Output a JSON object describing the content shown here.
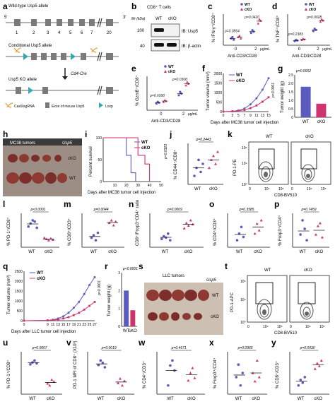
{
  "panels": {
    "a": "a",
    "b": "b",
    "c": "c",
    "d": "d",
    "e": "e",
    "f": "f",
    "g": "g",
    "h": "h",
    "i": "i",
    "j": "j",
    "k": "k",
    "l": "l",
    "m": "m",
    "n": "n",
    "o": "o",
    "p": "p",
    "q": "q",
    "r": "r",
    "s": "s",
    "t": "t",
    "u": "u",
    "v": "v",
    "w": "w",
    "x": "x",
    "y": "y"
  },
  "schematic": {
    "wt_allele": "Wild-type Usp5 allele",
    "five_prime": "5'",
    "three_prime": "3'",
    "exon_numbers": [
      "1",
      "2",
      "3",
      "4",
      "5",
      "6",
      "7",
      "20"
    ],
    "conditional_allele": "Conditional Usp5 allele",
    "ko_allele": "Usp5 KO allele",
    "cd4cre": "Cd4-Cre",
    "legend_sgrna": "Cas9/sgRNA",
    "legend_exon": "Exon of mouse Usp5",
    "legend_loxp": "Loxp"
  },
  "blot": {
    "title": "CD8⁺ T cells",
    "mr": "Mr (kDa)",
    "lanes": [
      "WT",
      "cKO"
    ],
    "markers": [
      "100",
      "40"
    ],
    "ib1": "IB: Usp5",
    "ib2": "IB: β-actin"
  },
  "common": {
    "wt": "WT",
    "cko": "cKO",
    "anti_cd3": "Anti-CD3/CD28",
    "dose_unit": "μg/mL",
    "dose0": "0",
    "dose2": "2"
  },
  "legend_colors": {
    "wt": "#5b5bbf",
    "cko": "#d0346f"
  },
  "chart_data": [
    {
      "panel": "c",
      "type": "scatter",
      "ylabel": "% IFN-γ⁺/CD8⁺",
      "xlabel": "Anti-CD3/CD28",
      "categories": [
        "0",
        "2"
      ],
      "series": [
        {
          "name": "WT",
          "values": [
            [
              1.0,
              1.2,
              0.8
            ],
            [
              1.8,
              2.2,
              2.0
            ]
          ]
        },
        {
          "name": "cKO",
          "values": [
            [
              1.2,
              1.4,
              1.0
            ],
            [
              3.2,
              3.8,
              3.6
            ]
          ]
        }
      ],
      "pvalues": [
        "p=0.3864",
        "p=0.0420"
      ]
    },
    {
      "panel": "d",
      "type": "scatter",
      "ylabel": "% TNF⁺/CD8⁺",
      "xlabel": "Anti-CD3/CD28",
      "categories": [
        "0",
        "2"
      ],
      "series": [
        {
          "name": "WT",
          "values": [
            [
              0.7,
              0.9,
              0.8
            ],
            [
              2.4,
              2.8,
              2.6
            ]
          ]
        },
        {
          "name": "cKO",
          "values": [
            [
              0.9,
              1.1,
              1.0
            ],
            [
              4.0,
              4.4,
              4.2
            ]
          ]
        }
      ],
      "pvalues": [
        "p=0.2383",
        "p=0.0028"
      ]
    },
    {
      "panel": "e",
      "type": "scatter",
      "ylabel": "% GzmB⁺/CD8⁺",
      "xlabel": "Anti-CD3/CD28",
      "categories": [
        "0",
        "2"
      ],
      "series": [
        {
          "name": "WT",
          "values": [
            [
              0.8,
              1.0,
              0.9
            ],
            [
              1.8,
              2.2,
              2.0
            ]
          ]
        },
        {
          "name": "cKO",
          "values": [
            [
              1.0,
              1.2,
              1.1
            ],
            [
              3.0,
              3.4,
              3.2
            ]
          ]
        }
      ],
      "pvalues": [
        "p=0.6990",
        "p=0.0368"
      ]
    },
    {
      "panel": "f",
      "type": "line",
      "ylabel": "Tumor volume (mm³)",
      "xlabel": "Days after MC38 tumor cell injection",
      "x": [
        0,
        3,
        5,
        7,
        9,
        11,
        13,
        15
      ],
      "ylim": [
        0,
        2000
      ],
      "yticks": [
        "0",
        "500",
        "1000",
        "1500",
        "2000"
      ],
      "series": [
        {
          "name": "WT",
          "values": [
            0,
            20,
            60,
            160,
            380,
            700,
            1150,
            1750
          ]
        },
        {
          "name": "cKO",
          "values": [
            0,
            15,
            40,
            90,
            180,
            320,
            520,
            750
          ]
        }
      ],
      "pvalues": [
        "p=0.0001"
      ]
    },
    {
      "panel": "g",
      "type": "bar",
      "ylabel": "Tumor weight (g)",
      "categories": [
        "WT",
        "cKO"
      ],
      "ylim": [
        0,
        2.5
      ],
      "yticks": [
        "0",
        "0.5",
        "1.0",
        "1.5",
        "2.0",
        "2.5"
      ],
      "values": [
        1.8,
        0.8
      ],
      "pvalues": [
        "p=0.0002"
      ]
    },
    {
      "panel": "i",
      "type": "line",
      "ylabel": "Percent survival",
      "xlabel": "Days after MC38 tumor cell injection",
      "ylim": [
        0,
        100
      ],
      "yticks": [
        "0",
        "50",
        "100"
      ],
      "xticks": [
        "10",
        "20",
        "30",
        "40",
        "50"
      ],
      "series": [
        {
          "name": "WT",
          "values": [
            [
              0,
              100
            ],
            [
              18,
              100
            ],
            [
              20,
              60
            ],
            [
              24,
              20
            ],
            [
              28,
              0
            ]
          ]
        },
        {
          "name": "cKO",
          "values": [
            [
              0,
              100
            ],
            [
              26,
              100
            ],
            [
              30,
              60
            ],
            [
              36,
              40
            ],
            [
              40,
              0
            ]
          ]
        }
      ],
      "pvalues": [
        "p=0.0323"
      ]
    },
    {
      "panel": "j",
      "type": "scatter",
      "ylabel": "% CD44⁺/CD8⁺",
      "categories": [
        "WT",
        "cKO"
      ],
      "values": [
        [
          88,
          90,
          92,
          89,
          91
        ],
        [
          90,
          92,
          93,
          91,
          94
        ]
      ],
      "pvalues": [
        "p=0.2443"
      ]
    },
    {
      "panel": "l",
      "type": "scatter",
      "ylabel": "% PD-1⁺/CD8⁺",
      "categories": [
        "WT",
        "cKO"
      ],
      "values": [
        [
          40,
          45,
          50,
          48,
          38
        ],
        [
          22,
          20,
          18,
          21,
          19
        ]
      ],
      "pvalues": [
        "p<0.0001"
      ]
    },
    {
      "panel": "m",
      "type": "scatter",
      "ylabel": "% CD8⁺/CD3⁺",
      "categories": [
        "WT",
        "cKO"
      ],
      "values": [
        [
          28,
          30,
          26,
          32
        ],
        [
          40,
          42,
          38,
          41
        ]
      ],
      "pvalues": [
        "p=0.0044"
      ]
    },
    {
      "panel": "n",
      "type": "scatter",
      "ylabel": "CD8⁺/Foxp3⁺CD4⁺ ratio",
      "categories": [
        "WT",
        "cKO"
      ],
      "values": [
        [
          8,
          10,
          9,
          12,
          7
        ],
        [
          16,
          20,
          18,
          22,
          19
        ]
      ],
      "pvalues": [
        "p=0.0069"
      ]
    },
    {
      "panel": "o",
      "type": "scatter",
      "ylabel": "% CD4⁺/CD3⁺",
      "categories": [
        "WT",
        "cKO"
      ],
      "values": [
        [
          20,
          22,
          24,
          21
        ],
        [
          22,
          25,
          23,
          26
        ]
      ],
      "pvalues": [
        "p=0.3585"
      ]
    },
    {
      "panel": "p",
      "type": "scatter",
      "ylabel": "% Foxp3⁺/CD4⁺",
      "categories": [
        "WT",
        "cKO"
      ],
      "values": [
        [
          30,
          35,
          32,
          28
        ],
        [
          30,
          33,
          34,
          29
        ]
      ],
      "pvalues": [
        "p=0.7459"
      ]
    },
    {
      "panel": "q",
      "type": "line",
      "ylabel": "Tumor volume (mm³)",
      "xlabel": "Days after LLC tumor cell injection",
      "x": [
        0,
        9,
        11,
        13,
        15,
        17,
        19,
        21,
        23,
        25,
        27
      ],
      "ylim": [
        0,
        2500
      ],
      "yticks": [
        "0",
        "500",
        "1000",
        "1500",
        "2000",
        "2500"
      ],
      "series": [
        {
          "name": "WT",
          "values": [
            0,
            20,
            50,
            110,
            220,
            400,
            650,
            950,
            1350,
            1800,
            2200
          ]
        },
        {
          "name": "cKO",
          "values": [
            0,
            15,
            30,
            60,
            110,
            180,
            280,
            400,
            560,
            750,
            950
          ]
        }
      ],
      "pvalues": [
        "p=0.0001"
      ]
    },
    {
      "panel": "r",
      "type": "bar",
      "ylabel": "Tumor weight (g)",
      "categories": [
        "WT",
        "cKO"
      ],
      "ylim": [
        0,
        3
      ],
      "yticks": [
        "0",
        "1",
        "2",
        "3"
      ],
      "values": [
        2.0,
        0.9
      ],
      "pvalues": [
        "p<0.0001"
      ]
    },
    {
      "panel": "u",
      "type": "scatter",
      "ylabel": "% PD-1⁺/CD8⁺",
      "categories": [
        "WT",
        "cKO"
      ],
      "values": [
        [
          38,
          40,
          42,
          39
        ],
        [
          18,
          16,
          22,
          20
        ]
      ],
      "pvalues": [
        "p=0.0007"
      ]
    },
    {
      "panel": "v",
      "type": "scatter",
      "ylabel": "PD-1 MFI of CD8⁺ (X10³)",
      "categories": [
        "WT",
        "cKO"
      ],
      "values": [
        [
          1.4,
          1.6,
          1.5,
          1.3
        ],
        [
          0.6,
          0.8,
          0.5,
          0.7
        ]
      ],
      "pvalues": [
        "p=0.0019"
      ]
    },
    {
      "panel": "w",
      "type": "scatter",
      "ylabel": "% CD4⁺/CD3⁺",
      "categories": [
        "WT",
        "cKO"
      ],
      "values": [
        [
          22,
          30,
          32,
          28
        ],
        [
          24,
          27,
          29,
          25
        ]
      ],
      "pvalues": [
        "p=0.4671"
      ]
    },
    {
      "panel": "x",
      "type": "scatter",
      "ylabel": "% Foxp3⁺/CD4⁺",
      "categories": [
        "WT",
        "cKO"
      ],
      "values": [
        [
          30,
          33,
          28,
          31
        ],
        [
          31,
          29,
          34,
          30
        ]
      ],
      "pvalues": [
        "p=0.0965"
      ]
    },
    {
      "panel": "y",
      "type": "scatter",
      "ylabel": "% CD8⁺/CD3⁺",
      "categories": [
        "WT",
        "cKO"
      ],
      "values": [
        [
          14,
          16,
          15,
          17
        ],
        [
          20,
          22,
          21,
          23
        ]
      ],
      "pvalues": [
        "p=0.0030"
      ]
    }
  ],
  "photos": {
    "h_title": "MC38 tumors",
    "h_gene": "Usp5",
    "s_title": "LLC tumors",
    "s_gene": "Usp5"
  },
  "flow": {
    "k_y": "PD-1-PE",
    "k_x": "CD8-BV510",
    "t_y": "PD-1-APC",
    "t_x": "CD8-BV510",
    "y_ticks": [
      "10⁰",
      "10⁴",
      "10⁵"
    ],
    "x_ticks": [
      "0",
      "10⁴",
      "10⁵"
    ]
  }
}
